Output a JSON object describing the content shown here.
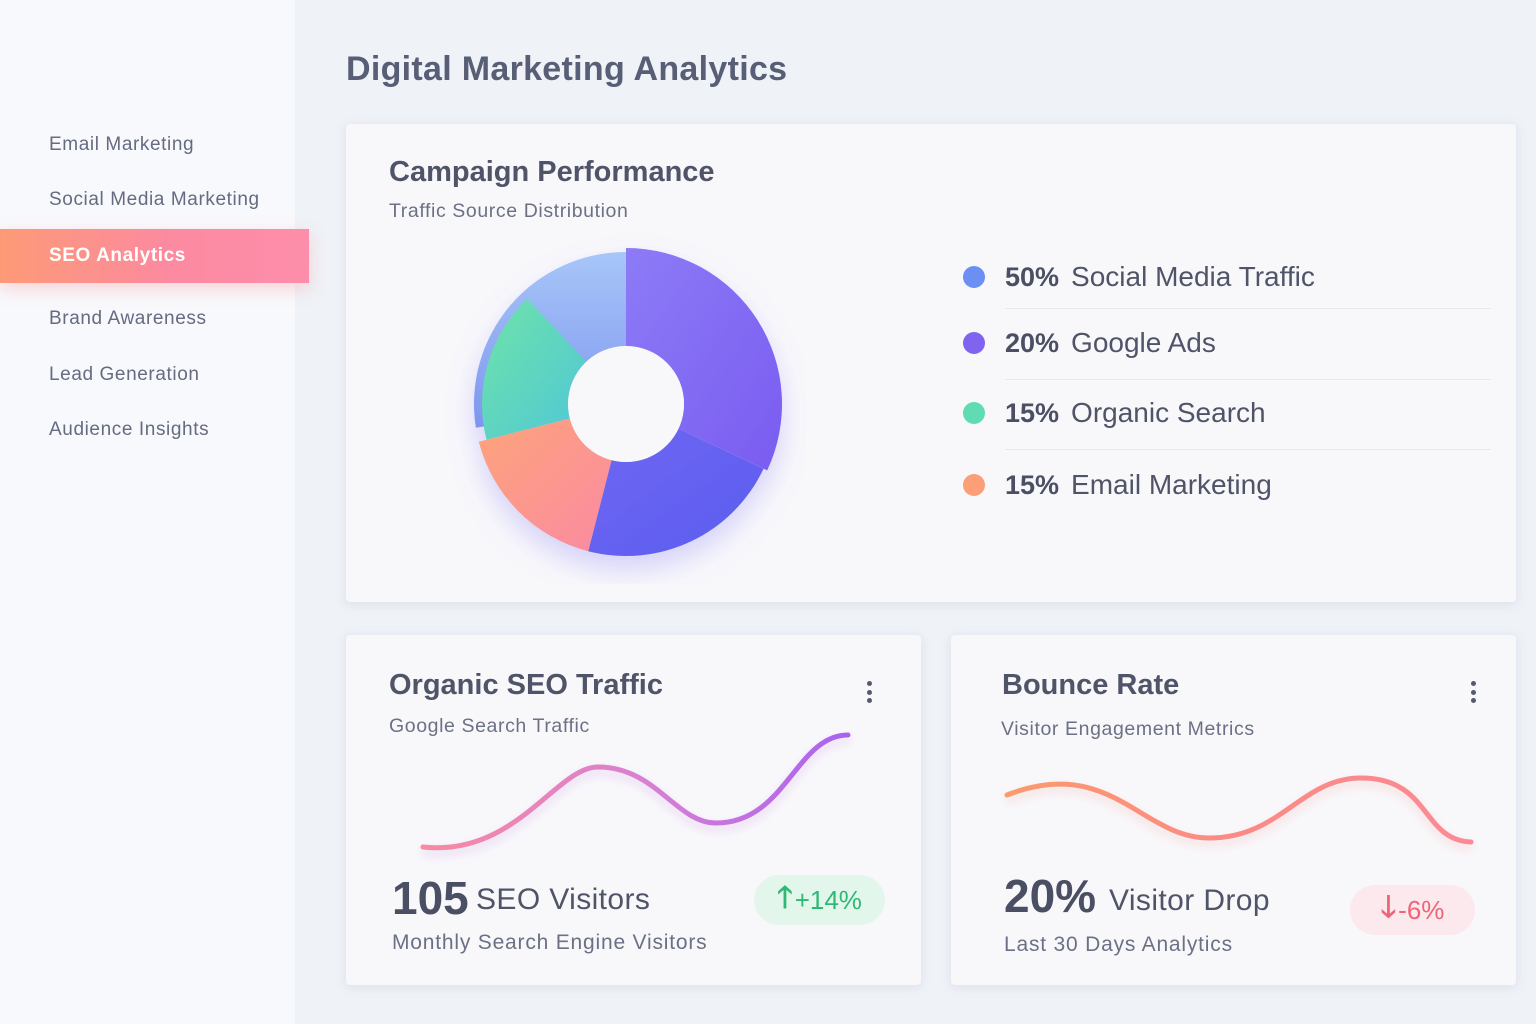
{
  "sidebar": {
    "items": [
      {
        "label": "Email Marketing",
        "active": false
      },
      {
        "label": "Social Media Marketing",
        "active": false
      },
      {
        "label": "SEO Analytics",
        "active": true
      },
      {
        "label": "Brand Awareness",
        "active": false
      },
      {
        "label": "Lead Generation",
        "active": false
      },
      {
        "label": "Audience Insights",
        "active": false
      }
    ]
  },
  "page": {
    "title": "Digital Marketing Analytics"
  },
  "campaign": {
    "title": "Campaign Performance",
    "subtitle": "Traffic Source Distribution",
    "legend": [
      {
        "pct": "50%",
        "label": "Social Media Traffic",
        "color": "#6b8ff2"
      },
      {
        "pct": "20%",
        "label": "Google Ads",
        "color": "#8064f0"
      },
      {
        "pct": "15%",
        "label": "Organic Search",
        "color": "#5fdcb2"
      },
      {
        "pct": "15%",
        "label": "Email Marketing",
        "color": "#fc9f78"
      }
    ]
  },
  "chart_data": {
    "type": "pie",
    "categories": [
      "Social Media Traffic",
      "Google Ads",
      "Organic Search",
      "Email Marketing"
    ],
    "values": [
      50,
      20,
      15,
      15
    ],
    "title": "Campaign Performance",
    "subtitle": "Traffic Source Distribution",
    "legend_position": "right"
  },
  "seo": {
    "title": "Organic SEO Traffic",
    "subtitle": "Google Search Traffic",
    "value": "105",
    "value_label": "SEO Visitors",
    "footer": "Monthly Search Engine Visitors",
    "change": "+14%",
    "change_arrow": "🡑",
    "menu_icon": "kebab-icon"
  },
  "bounce": {
    "title": "Bounce Rate",
    "subtitle": "Visitor Engagement Metrics",
    "value": "20%",
    "value_label": "Visitor Drop",
    "footer": "Last 30 Days Analytics",
    "change": "-6%",
    "change_arrow": "🡓",
    "menu_icon": "kebab-icon"
  }
}
